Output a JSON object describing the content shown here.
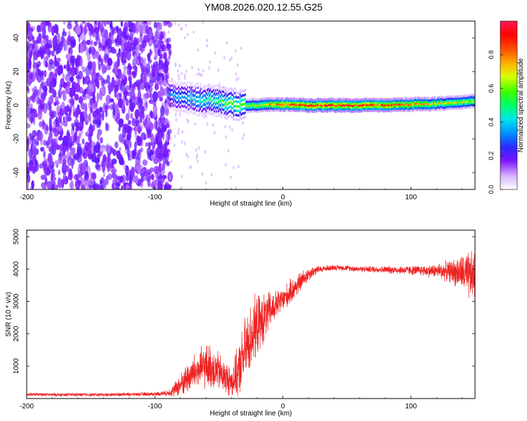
{
  "figure_title": "YM08.2026.020.12.55.G25",
  "colors": {
    "snr_line": "#ee2222",
    "spectrum_noise": "#6a1fd8",
    "spectrum_peak": "#e51d1d"
  },
  "chart_data": [
    {
      "type": "heatmap",
      "title": "",
      "xlabel": "Height of straight line (km)",
      "ylabel": "Frequency (Hz)",
      "xlim": [
        -200,
        150
      ],
      "ylim": [
        -50,
        50
      ],
      "x_ticks": [
        -200,
        -100,
        0,
        100
      ],
      "y_ticks": [
        -40,
        -20,
        0,
        20,
        40
      ],
      "x_tick_labels": [
        "-200",
        "-100",
        "0",
        "100"
      ],
      "y_tick_labels": [
        "-40",
        "-20",
        "0",
        "20",
        "40"
      ],
      "colorbar": {
        "label": "Normalized spectral amplitude",
        "range": [
          0,
          1
        ],
        "ticks": [
          0.0,
          0.2,
          0.4,
          0.6,
          0.8
        ],
        "tick_labels": [
          "0.0",
          "0.2",
          "0.4",
          "0.6",
          "0.8"
        ]
      },
      "ridge": {
        "description_points_x": [
          -90,
          -80,
          -70,
          -60,
          -50,
          -40,
          -30,
          -20,
          -10,
          0,
          20,
          40,
          60,
          80,
          100,
          120,
          140,
          150
        ],
        "frequency_hz": [
          6,
          5,
          4,
          3,
          2,
          1,
          0,
          0,
          0.5,
          0.5,
          0,
          0,
          0,
          0.2,
          0.5,
          1,
          2,
          2.5
        ],
        "amplitude": [
          0.35,
          0.4,
          0.45,
          0.5,
          0.55,
          0.6,
          0.65,
          0.7,
          0.8,
          0.9,
          0.95,
          0.95,
          0.95,
          0.9,
          0.85,
          0.75,
          0.7,
          0.7
        ]
      },
      "noise_region_x": [
        -200,
        -88
      ]
    },
    {
      "type": "line",
      "title": "",
      "xlabel": "Height of straight line (km)",
      "ylabel": "SNR (10 * v/v)",
      "xlim": [
        -200,
        150
      ],
      "ylim": [
        0,
        5200
      ],
      "x_ticks": [
        -200,
        -100,
        0,
        100
      ],
      "y_ticks": [
        1000,
        2000,
        3000,
        4000,
        5000
      ],
      "x_tick_labels": [
        "-200",
        "-100",
        "0",
        "100"
      ],
      "y_tick_labels": [
        "1000",
        "2000",
        "3000",
        "4000",
        "5000"
      ],
      "series": [
        {
          "name": "SNR",
          "x": [
            -200,
            -180,
            -160,
            -140,
            -120,
            -100,
            -90,
            -85,
            -80,
            -75,
            -70,
            -65,
            -60,
            -55,
            -50,
            -45,
            -40,
            -35,
            -30,
            -25,
            -20,
            -15,
            -10,
            -5,
            0,
            5,
            10,
            15,
            20,
            25,
            30,
            40,
            50,
            60,
            70,
            80,
            90,
            100,
            110,
            120,
            130,
            140,
            145,
            150
          ],
          "y": [
            130,
            120,
            120,
            120,
            130,
            140,
            170,
            260,
            420,
            620,
            780,
            900,
            1000,
            950,
            820,
            650,
            520,
            800,
            1400,
            1900,
            2250,
            2450,
            2700,
            2900,
            3050,
            3250,
            3450,
            3650,
            3850,
            3950,
            4000,
            4050,
            4030,
            4000,
            3990,
            3980,
            3970,
            3960,
            3950,
            3940,
            3930,
            3880,
            3750,
            3800
          ],
          "spread": [
            60,
            60,
            60,
            60,
            60,
            70,
            100,
            250,
            400,
            550,
            650,
            700,
            800,
            800,
            700,
            600,
            550,
            900,
            1200,
            1200,
            1100,
            900,
            700,
            500,
            450,
            450,
            400,
            350,
            250,
            180,
            120,
            100,
            100,
            110,
            120,
            130,
            150,
            170,
            200,
            260,
            380,
            650,
            900,
            850
          ]
        }
      ]
    }
  ]
}
